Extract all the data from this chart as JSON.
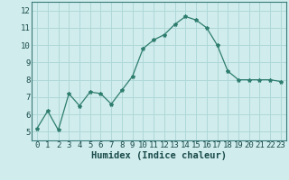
{
  "x": [
    0,
    1,
    2,
    3,
    4,
    5,
    6,
    7,
    8,
    9,
    10,
    11,
    12,
    13,
    14,
    15,
    16,
    17,
    18,
    19,
    20,
    21,
    22,
    23
  ],
  "y": [
    5.2,
    6.2,
    5.1,
    7.2,
    6.5,
    7.3,
    7.2,
    6.6,
    7.4,
    8.2,
    9.8,
    10.3,
    10.6,
    11.2,
    11.65,
    11.45,
    11.0,
    10.0,
    8.5,
    8.0,
    8.0,
    8.0,
    8.0,
    7.9
  ],
  "xlabel": "Humidex (Indice chaleur)",
  "ylim": [
    4.5,
    12.5
  ],
  "xlim": [
    -0.5,
    23.5
  ],
  "yticks": [
    5,
    6,
    7,
    8,
    9,
    10,
    11,
    12
  ],
  "xticks": [
    0,
    1,
    2,
    3,
    4,
    5,
    6,
    7,
    8,
    9,
    10,
    11,
    12,
    13,
    14,
    15,
    16,
    17,
    18,
    19,
    20,
    21,
    22,
    23
  ],
  "line_color": "#2e7d6e",
  "marker": "*",
  "marker_size": 3,
  "bg_color": "#d0ecec",
  "grid_color": "#b0d8d8",
  "tick_label_fontsize": 6.5,
  "xlabel_fontsize": 7.5
}
